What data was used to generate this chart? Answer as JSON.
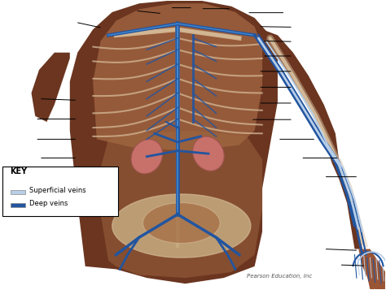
{
  "background_color": "#ffffff",
  "figure_width": 4.74,
  "figure_height": 3.57,
  "dpi": 100,
  "key_title": "KEY",
  "key_items": [
    {
      "label": "Superficial veins",
      "color": "#b8cfe8"
    },
    {
      "label": "Deep veins",
      "color": "#2255a0"
    }
  ],
  "credit_text": "Pearson Education, Inc",
  "body_color": "#6b3520",
  "body_color2": "#7a3e22",
  "skin_light": "#c4865a",
  "skeleton_color": "#d4b896",
  "skeleton_color2": "#e8d5b0",
  "abdominal_bg": "#a0623a",
  "kidney_color": "#c8706a",
  "pelvis_color": "#d4c090",
  "vein_deep": "#2255a0",
  "vein_super": "#b8cfe8",
  "label_lines": [
    [
      0.195,
      0.925,
      0.265,
      0.905
    ],
    [
      0.35,
      0.965,
      0.42,
      0.955
    ],
    [
      0.44,
      0.975,
      0.5,
      0.975
    ],
    [
      0.52,
      0.972,
      0.6,
      0.972
    ],
    [
      0.64,
      0.958,
      0.74,
      0.958
    ],
    [
      0.67,
      0.91,
      0.76,
      0.908
    ],
    [
      0.68,
      0.86,
      0.76,
      0.858
    ],
    [
      0.68,
      0.808,
      0.76,
      0.808
    ],
    [
      0.67,
      0.755,
      0.76,
      0.755
    ],
    [
      0.67,
      0.7,
      0.76,
      0.7
    ],
    [
      0.67,
      0.645,
      0.76,
      0.645
    ],
    [
      0.65,
      0.588,
      0.76,
      0.588
    ],
    [
      0.72,
      0.52,
      0.82,
      0.52
    ],
    [
      0.78,
      0.455,
      0.88,
      0.455
    ],
    [
      0.84,
      0.39,
      0.93,
      0.39
    ],
    [
      0.1,
      0.66,
      0.2,
      0.655
    ],
    [
      0.09,
      0.59,
      0.2,
      0.59
    ],
    [
      0.09,
      0.52,
      0.2,
      0.52
    ],
    [
      0.1,
      0.455,
      0.2,
      0.455
    ],
    [
      0.12,
      0.4,
      0.21,
      0.4
    ],
    [
      0.14,
      0.35,
      0.22,
      0.35
    ],
    [
      0.84,
      0.14,
      0.93,
      0.135
    ],
    [
      0.88,
      0.085,
      0.95,
      0.082
    ]
  ]
}
